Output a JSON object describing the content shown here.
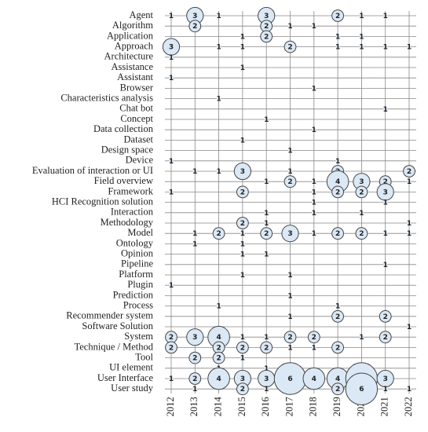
{
  "chart_data": {
    "type": "bubble",
    "x": [
      "2012",
      "2013",
      "2014",
      "2015",
      "2016",
      "2017",
      "2018",
      "2019",
      "2020",
      "2021",
      "2022"
    ],
    "y_categories": [
      "Agent",
      "Algorithm",
      "Application",
      "Approach",
      "Architecture",
      "Assistance",
      "Assistant",
      "Browser",
      "Characteristics analysis",
      "Chat bot",
      "Concept",
      "Data collection",
      "Dataset",
      "Design space",
      "Device",
      "Evaluation of interaction or UI",
      "Field overview",
      "Framework",
      "HCI Recognition solution",
      "Interaction",
      "Methodology",
      "Model",
      "Ontology",
      "Opinion",
      "Pipeline",
      "Platform",
      "Plugin",
      "Prediction",
      "Process",
      "Recommender system",
      "Software Solution",
      "System",
      "Technique / Method",
      "Tool",
      "UI element",
      "User Interface",
      "User study"
    ],
    "values": [
      [
        1,
        3,
        1,
        null,
        3,
        null,
        null,
        2,
        1,
        1,
        null
      ],
      [
        null,
        2,
        null,
        null,
        2,
        1,
        1,
        null,
        null,
        null,
        null
      ],
      [
        null,
        null,
        null,
        1,
        2,
        null,
        null,
        1,
        1,
        null,
        null
      ],
      [
        3,
        null,
        1,
        1,
        null,
        2,
        null,
        1,
        1,
        1,
        1
      ],
      [
        1,
        null,
        null,
        null,
        null,
        null,
        null,
        null,
        null,
        null,
        null
      ],
      [
        null,
        null,
        null,
        1,
        null,
        null,
        null,
        null,
        null,
        null,
        null
      ],
      [
        1,
        null,
        null,
        null,
        null,
        null,
        null,
        null,
        null,
        null,
        null
      ],
      [
        null,
        null,
        null,
        null,
        null,
        null,
        1,
        null,
        null,
        null,
        null
      ],
      [
        null,
        null,
        1,
        null,
        null,
        null,
        null,
        null,
        null,
        null,
        null
      ],
      [
        null,
        null,
        null,
        null,
        null,
        null,
        null,
        null,
        null,
        1,
        null
      ],
      [
        null,
        null,
        null,
        null,
        1,
        null,
        null,
        null,
        null,
        null,
        null
      ],
      [
        null,
        null,
        null,
        null,
        null,
        null,
        1,
        null,
        null,
        null,
        null
      ],
      [
        null,
        null,
        null,
        1,
        null,
        null,
        null,
        null,
        null,
        null,
        null
      ],
      [
        null,
        null,
        null,
        null,
        null,
        1,
        null,
        null,
        null,
        null,
        null
      ],
      [
        1,
        null,
        null,
        null,
        null,
        null,
        null,
        1,
        null,
        null,
        null
      ],
      [
        null,
        1,
        1,
        3,
        null,
        1,
        null,
        2,
        null,
        null,
        2
      ],
      [
        null,
        null,
        null,
        null,
        1,
        2,
        1,
        4,
        3,
        2,
        1
      ],
      [
        1,
        null,
        null,
        2,
        null,
        null,
        1,
        2,
        2,
        3,
        null
      ],
      [
        null,
        null,
        null,
        null,
        null,
        null,
        1,
        null,
        null,
        1,
        null
      ],
      [
        null,
        null,
        null,
        null,
        1,
        null,
        1,
        null,
        1,
        null,
        null
      ],
      [
        null,
        null,
        null,
        2,
        1,
        null,
        null,
        null,
        null,
        null,
        1
      ],
      [
        null,
        1,
        2,
        1,
        2,
        3,
        1,
        2,
        2,
        1,
        1
      ],
      [
        null,
        1,
        null,
        1,
        null,
        null,
        null,
        null,
        null,
        null,
        null
      ],
      [
        null,
        null,
        null,
        1,
        1,
        null,
        null,
        null,
        null,
        null,
        null
      ],
      [
        null,
        null,
        null,
        null,
        null,
        null,
        null,
        null,
        null,
        1,
        null
      ],
      [
        null,
        null,
        null,
        1,
        null,
        1,
        null,
        null,
        null,
        null,
        null
      ],
      [
        1,
        null,
        null,
        null,
        null,
        null,
        null,
        null,
        null,
        null,
        null
      ],
      [
        null,
        null,
        null,
        null,
        null,
        1,
        null,
        null,
        null,
        null,
        null
      ],
      [
        null,
        null,
        1,
        null,
        null,
        null,
        null,
        1,
        null,
        null,
        null
      ],
      [
        null,
        null,
        null,
        null,
        null,
        1,
        null,
        2,
        null,
        2,
        null
      ],
      [
        null,
        null,
        null,
        null,
        null,
        null,
        null,
        null,
        null,
        null,
        1
      ],
      [
        2,
        3,
        4,
        1,
        1,
        2,
        2,
        null,
        1,
        2,
        null
      ],
      [
        2,
        null,
        2,
        2,
        2,
        1,
        1,
        2,
        null,
        null,
        null
      ],
      [
        null,
        2,
        2,
        1,
        null,
        null,
        null,
        null,
        null,
        null,
        null
      ],
      [
        null,
        null,
        1,
        null,
        1,
        null,
        null,
        null,
        null,
        null,
        null
      ],
      [
        1,
        2,
        4,
        3,
        3,
        6,
        4,
        4,
        6,
        3,
        null
      ],
      [
        null,
        1,
        null,
        2,
        1,
        null,
        null,
        2,
        6,
        1,
        1
      ]
    ],
    "color": "#dbe8f5",
    "grid": true
  }
}
